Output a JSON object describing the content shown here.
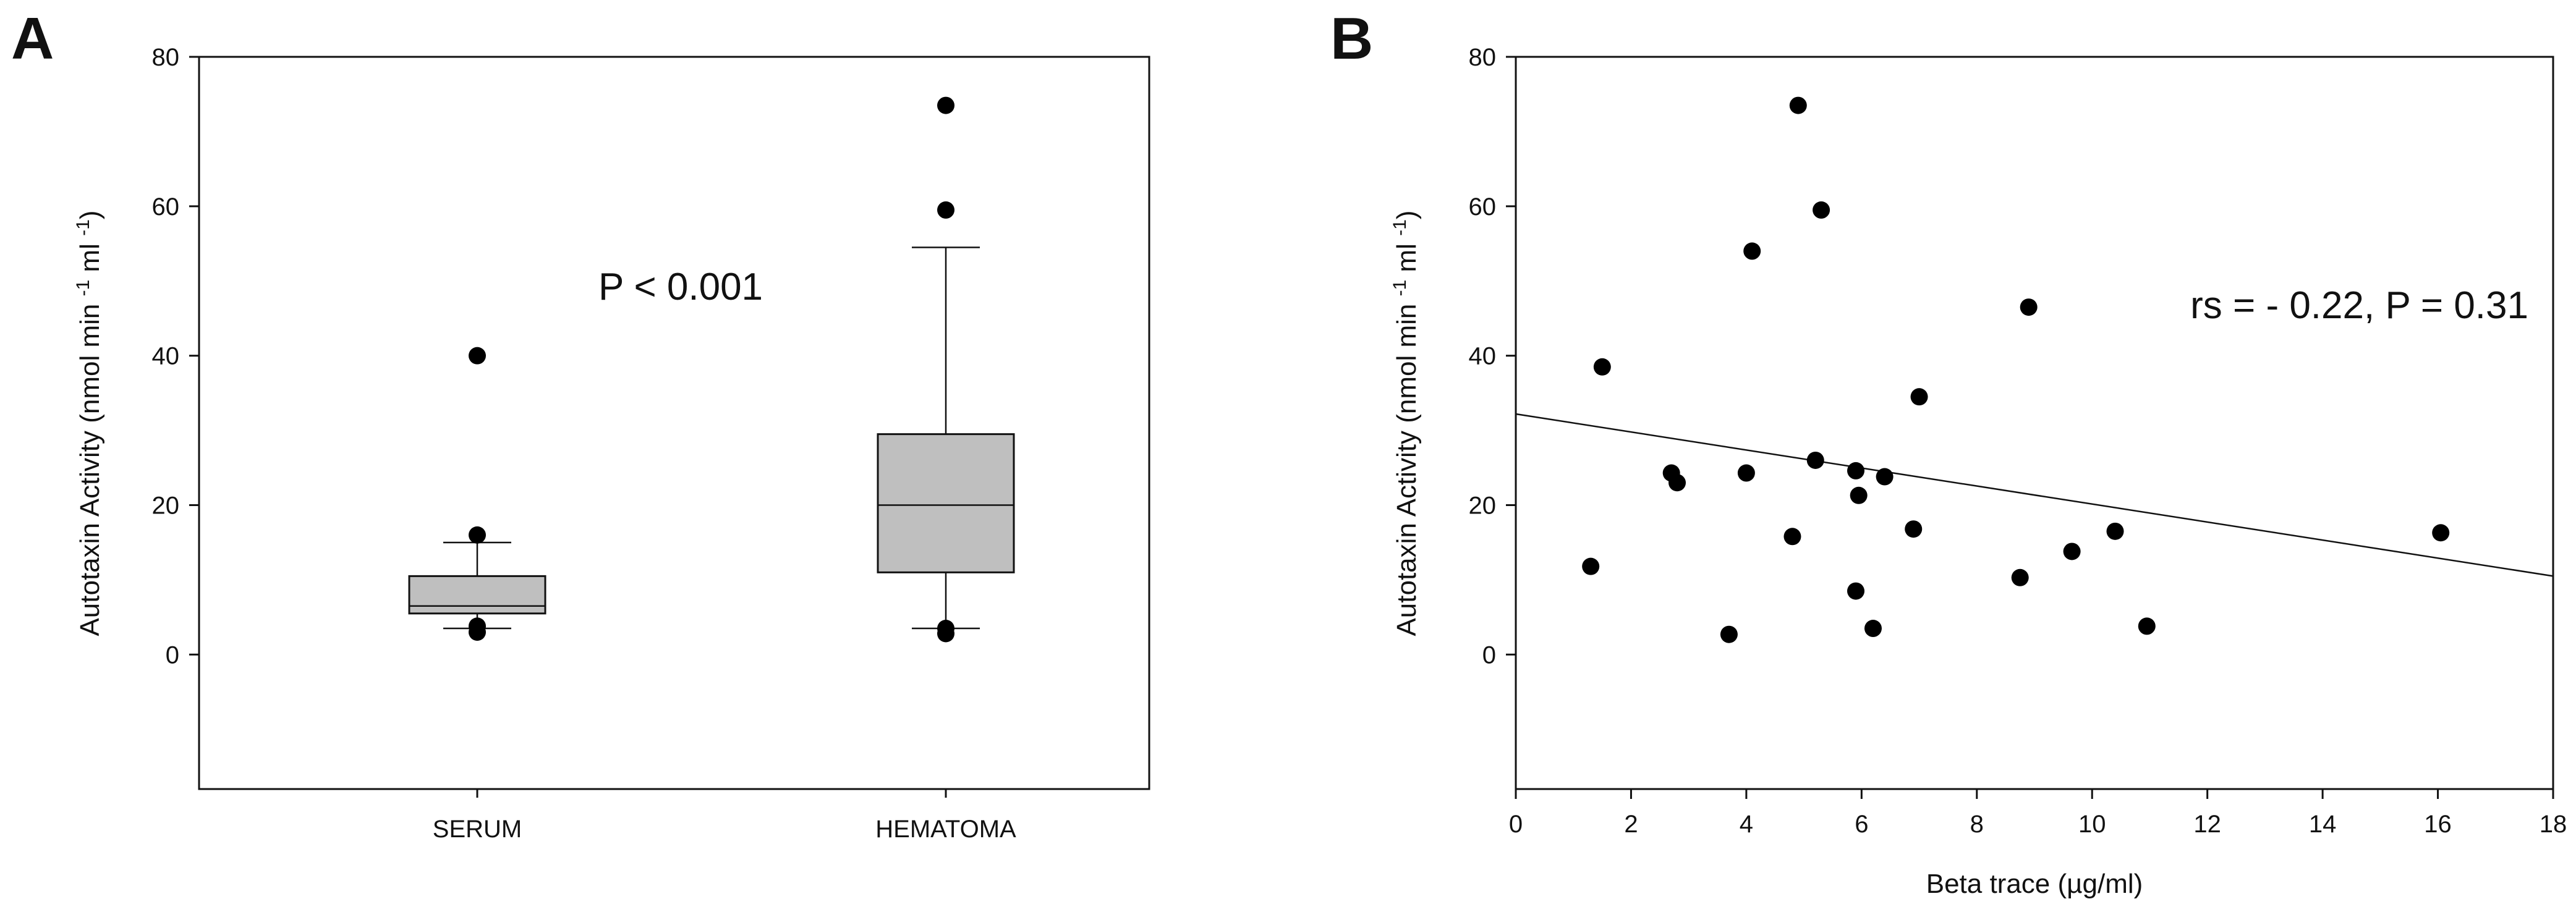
{
  "chart_data": [
    {
      "panel": "A",
      "type": "box",
      "ylabel": "Autotaxin Activity (nmol min -1 ml -1)",
      "ylabel_parts": {
        "base": "Autotaxin Activity (nmol min ",
        "sup1": "-1",
        "mid": " ml ",
        "sup2": "-1",
        "end": ")"
      },
      "ylim": [
        -18,
        80
      ],
      "yticks": [
        0,
        20,
        40,
        60,
        80
      ],
      "annotation": "P < 0.001",
      "categories": [
        "SERUM",
        "HEMATOMA"
      ],
      "boxes": [
        {
          "name": "SERUM",
          "whisker_low": 3.5,
          "q1": 5.5,
          "median": 6.5,
          "q3": 10.5,
          "whisker_high": 15,
          "outliers": [
            40,
            16,
            3.8,
            3.0
          ]
        },
        {
          "name": "HEMATOMA",
          "whisker_low": 3.5,
          "q1": 11,
          "median": 20,
          "q3": 29.5,
          "whisker_high": 54.5,
          "outliers": [
            73.5,
            59.5,
            3.5,
            2.8
          ]
        }
      ],
      "box_color": "#bfbfbf"
    },
    {
      "panel": "B",
      "type": "scatter",
      "xlabel": "Beta trace (µg/ml)",
      "ylabel": "Autotaxin Activity (nmol min -1 ml -1)",
      "ylabel_parts": {
        "base": "Autotaxin Activity (nmol min ",
        "sup1": "-1",
        "mid": " ml ",
        "sup2": "-1",
        "end": ")"
      },
      "xlim": [
        0,
        18
      ],
      "ylim": [
        -18,
        80
      ],
      "xticks": [
        0,
        2,
        4,
        6,
        8,
        10,
        12,
        14,
        16,
        18
      ],
      "yticks": [
        0,
        20,
        40,
        60,
        80
      ],
      "annotation": "rs = - 0.22, P = 0.31",
      "points": [
        {
          "x": 1.3,
          "y": 11.8
        },
        {
          "x": 1.5,
          "y": 38.5
        },
        {
          "x": 2.7,
          "y": 24.3
        },
        {
          "x": 2.8,
          "y": 23.0
        },
        {
          "x": 3.7,
          "y": 2.7
        },
        {
          "x": 4.0,
          "y": 24.3
        },
        {
          "x": 4.1,
          "y": 54.0
        },
        {
          "x": 4.8,
          "y": 15.8
        },
        {
          "x": 4.9,
          "y": 73.5
        },
        {
          "x": 5.2,
          "y": 26.0
        },
        {
          "x": 5.3,
          "y": 59.5
        },
        {
          "x": 5.9,
          "y": 8.5
        },
        {
          "x": 5.9,
          "y": 24.6
        },
        {
          "x": 5.95,
          "y": 21.3
        },
        {
          "x": 6.2,
          "y": 3.5
        },
        {
          "x": 6.4,
          "y": 23.8
        },
        {
          "x": 6.9,
          "y": 16.8
        },
        {
          "x": 7.0,
          "y": 34.5
        },
        {
          "x": 8.75,
          "y": 10.3
        },
        {
          "x": 8.9,
          "y": 46.5
        },
        {
          "x": 9.65,
          "y": 13.8
        },
        {
          "x": 10.4,
          "y": 16.5
        },
        {
          "x": 10.95,
          "y": 3.8
        },
        {
          "x": 16.05,
          "y": 16.3
        }
      ],
      "regression": {
        "x": [
          0,
          18
        ],
        "y": [
          32.2,
          10.5
        ]
      }
    }
  ]
}
